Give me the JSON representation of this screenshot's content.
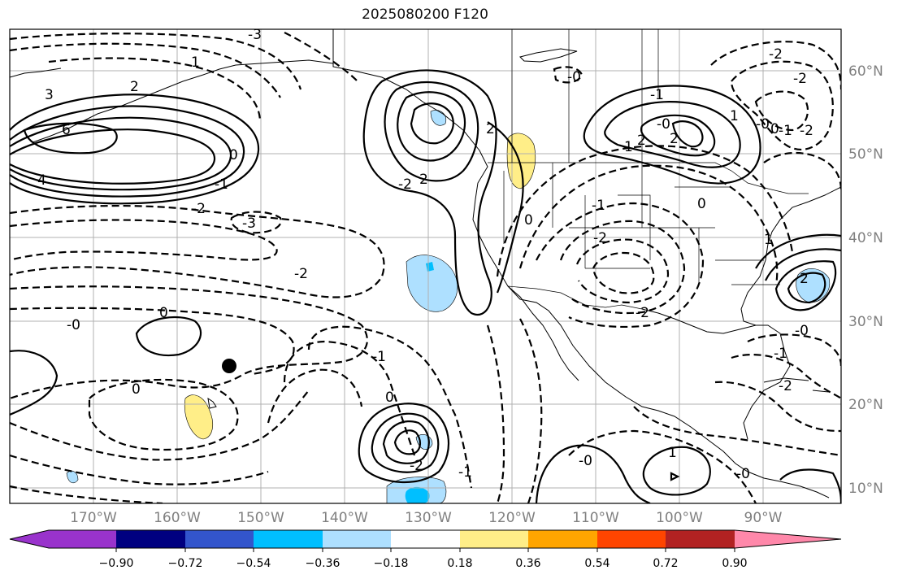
{
  "title": "2025080200 F120",
  "axes": {
    "longitude_labels": [
      "170°W",
      "160°W",
      "150°W",
      "140°W",
      "130°W",
      "120°W",
      "110°W",
      "100°W",
      "90°W"
    ],
    "latitude_labels": [
      "60°N",
      "50°N",
      "40°N",
      "30°N",
      "20°N",
      "10°N"
    ],
    "gridlines": true
  },
  "colorbar": {
    "ticks": [
      "−0.90",
      "−0.72",
      "−0.54",
      "−0.36",
      "−0.18",
      "0.18",
      "0.36",
      "0.54",
      "0.72",
      "0.90"
    ],
    "colors": [
      "#9933cc",
      "#000080",
      "#3355cc",
      "#00bfff",
      "#aee0ff",
      "#ffffff",
      "#ffee88",
      "#ffa500",
      "#ff4500",
      "#b22222",
      "#ff88aa"
    ],
    "extend": "both"
  },
  "contour_labels": {
    "c1": "3",
    "c2": "2",
    "c3": "1",
    "c4": "-3",
    "c5": "6",
    "c6": "4",
    "c7": "0",
    "c8": "-1",
    "c9": "-2",
    "c10": "-3",
    "c11": "-2",
    "c12": "0",
    "c13": "-0",
    "c14": "-1",
    "c15": "2",
    "c16": "-2",
    "c17": "2",
    "c18": "-1",
    "c19": "-2",
    "c20": "0",
    "c21": "-0",
    "c22": "-1",
    "c23": "1",
    "c24": "2",
    "c25": "-0",
    "c26": "2",
    "c27": "1",
    "c28": "-2",
    "c29": "-2",
    "c30": "-0",
    "c31": "0",
    "c32": "-1",
    "c33": "-2",
    "c34": "0",
    "c35": "1",
    "c36": "2",
    "c37": "-2",
    "c38": "-1",
    "c39": "-2",
    "c40": "-0",
    "c41": "-1",
    "c42": "-2",
    "c43": "0",
    "c44": "1",
    "c45": "-0",
    "c46": "-0",
    "c47": "0"
  },
  "marker": "point"
}
